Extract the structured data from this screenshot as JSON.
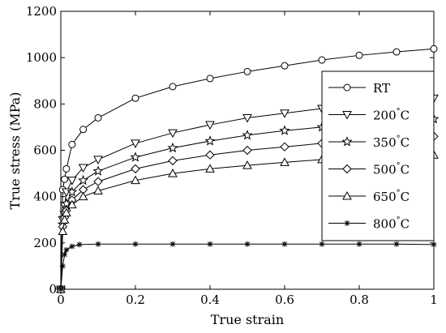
{
  "chart_data": {
    "type": "line",
    "xlabel": "True strain",
    "ylabel": "True stress (MPa)",
    "xlim": [
      0,
      1
    ],
    "ylim": [
      0,
      1200
    ],
    "xticks": [
      0,
      0.2,
      0.4,
      0.6,
      0.8,
      1
    ],
    "xtick_labels": [
      "0",
      "0.2",
      "0.4",
      "0.6",
      "0.8",
      "1"
    ],
    "yticks": [
      0,
      200,
      400,
      600,
      800,
      1000,
      1200
    ],
    "ytick_labels": [
      "0",
      "200",
      "400",
      "600",
      "800",
      "1000",
      "1200"
    ],
    "grid": false,
    "legend_position": "right",
    "series": [
      {
        "name": "RT",
        "superscript": "",
        "unit": "",
        "marker": "circle",
        "x": [
          0,
          0.005,
          0.01,
          0.015,
          0.03,
          0.06,
          0.1,
          0.2,
          0.3,
          0.4,
          0.5,
          0.6,
          0.7,
          0.8,
          0.9,
          1.0
        ],
        "y": [
          0,
          430,
          475,
          520,
          625,
          690,
          740,
          825,
          875,
          910,
          940,
          965,
          990,
          1010,
          1025,
          1038
        ]
      },
      {
        "name": "200",
        "superscript": "°",
        "unit": "C",
        "marker": "triangle-down",
        "x": [
          0,
          0.005,
          0.01,
          0.015,
          0.03,
          0.06,
          0.1,
          0.2,
          0.3,
          0.4,
          0.5,
          0.6,
          0.7,
          0.8,
          0.9,
          1.0
        ],
        "y": [
          0,
          300,
          360,
          420,
          470,
          525,
          560,
          630,
          675,
          710,
          740,
          760,
          780,
          795,
          810,
          825
        ]
      },
      {
        "name": "350",
        "superscript": "°",
        "unit": "C",
        "marker": "star",
        "x": [
          0,
          0.005,
          0.01,
          0.015,
          0.03,
          0.06,
          0.1,
          0.2,
          0.3,
          0.4,
          0.5,
          0.6,
          0.7,
          0.8,
          0.9,
          1.0
        ],
        "y": [
          0,
          280,
          330,
          370,
          420,
          470,
          510,
          570,
          610,
          640,
          665,
          685,
          700,
          715,
          725,
          735
        ]
      },
      {
        "name": "500",
        "superscript": "°",
        "unit": "C",
        "marker": "diamond",
        "x": [
          0,
          0.005,
          0.01,
          0.015,
          0.03,
          0.06,
          0.1,
          0.2,
          0.3,
          0.4,
          0.5,
          0.6,
          0.7,
          0.8,
          0.9,
          1.0
        ],
        "y": [
          0,
          270,
          310,
          340,
          385,
          430,
          465,
          520,
          555,
          580,
          600,
          615,
          630,
          640,
          650,
          660
        ]
      },
      {
        "name": "650",
        "superscript": "°",
        "unit": "C",
        "marker": "triangle-up",
        "x": [
          0,
          0.005,
          0.01,
          0.015,
          0.03,
          0.06,
          0.1,
          0.2,
          0.3,
          0.4,
          0.5,
          0.6,
          0.7,
          0.8,
          0.9,
          1.0
        ],
        "y": [
          0,
          250,
          300,
          330,
          365,
          400,
          425,
          470,
          500,
          520,
          535,
          548,
          560,
          568,
          575,
          580
        ]
      },
      {
        "name": "800",
        "superscript": "°",
        "unit": "C",
        "marker": "asterisk",
        "x": [
          0,
          0.005,
          0.01,
          0.015,
          0.03,
          0.05,
          0.1,
          0.2,
          0.3,
          0.4,
          0.5,
          0.6,
          0.7,
          0.8,
          0.9,
          1.0
        ],
        "y": [
          0,
          100,
          150,
          170,
          185,
          193,
          195,
          195,
          195,
          195,
          195,
          195,
          195,
          195,
          195,
          193
        ]
      }
    ]
  }
}
